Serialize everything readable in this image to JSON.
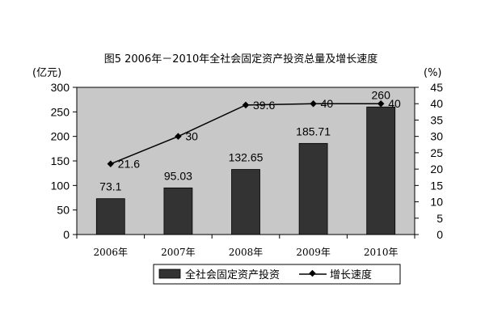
{
  "chart_data": {
    "type": "bar",
    "title": "图5  2006年－2010年全社会固定资产投资总量及增长速度",
    "left_unit": "(亿元)",
    "right_unit": "(%)",
    "categories": [
      "2006年",
      "2007年",
      "2008年",
      "2009年",
      "2010年"
    ],
    "series": [
      {
        "name": "全社会固定资产投资",
        "type": "bar",
        "axis": "left",
        "values": [
          73.1,
          95.03,
          132.65,
          185.71,
          260
        ],
        "labels": [
          "73.1",
          "95.03",
          "132.65",
          "185.71",
          "260"
        ],
        "color": "#333333"
      },
      {
        "name": "增长速度",
        "type": "line",
        "axis": "right",
        "values": [
          21.6,
          30,
          39.6,
          40,
          40
        ],
        "labels": [
          "21.6",
          "30",
          "39.6",
          "40",
          "40"
        ],
        "color": "#000000"
      }
    ],
    "y_left": {
      "min": 0,
      "max": 300,
      "step": 50,
      "ticks": [
        "0",
        "50",
        "100",
        "150",
        "200",
        "250",
        "300"
      ]
    },
    "y_right": {
      "min": 0,
      "max": 45,
      "step": 5,
      "ticks": [
        "0",
        "5",
        "10",
        "15",
        "20",
        "25",
        "30",
        "35",
        "40",
        "45"
      ]
    },
    "grid": false,
    "plot_background": "#c8c8c8",
    "legend_position": "bottom"
  }
}
